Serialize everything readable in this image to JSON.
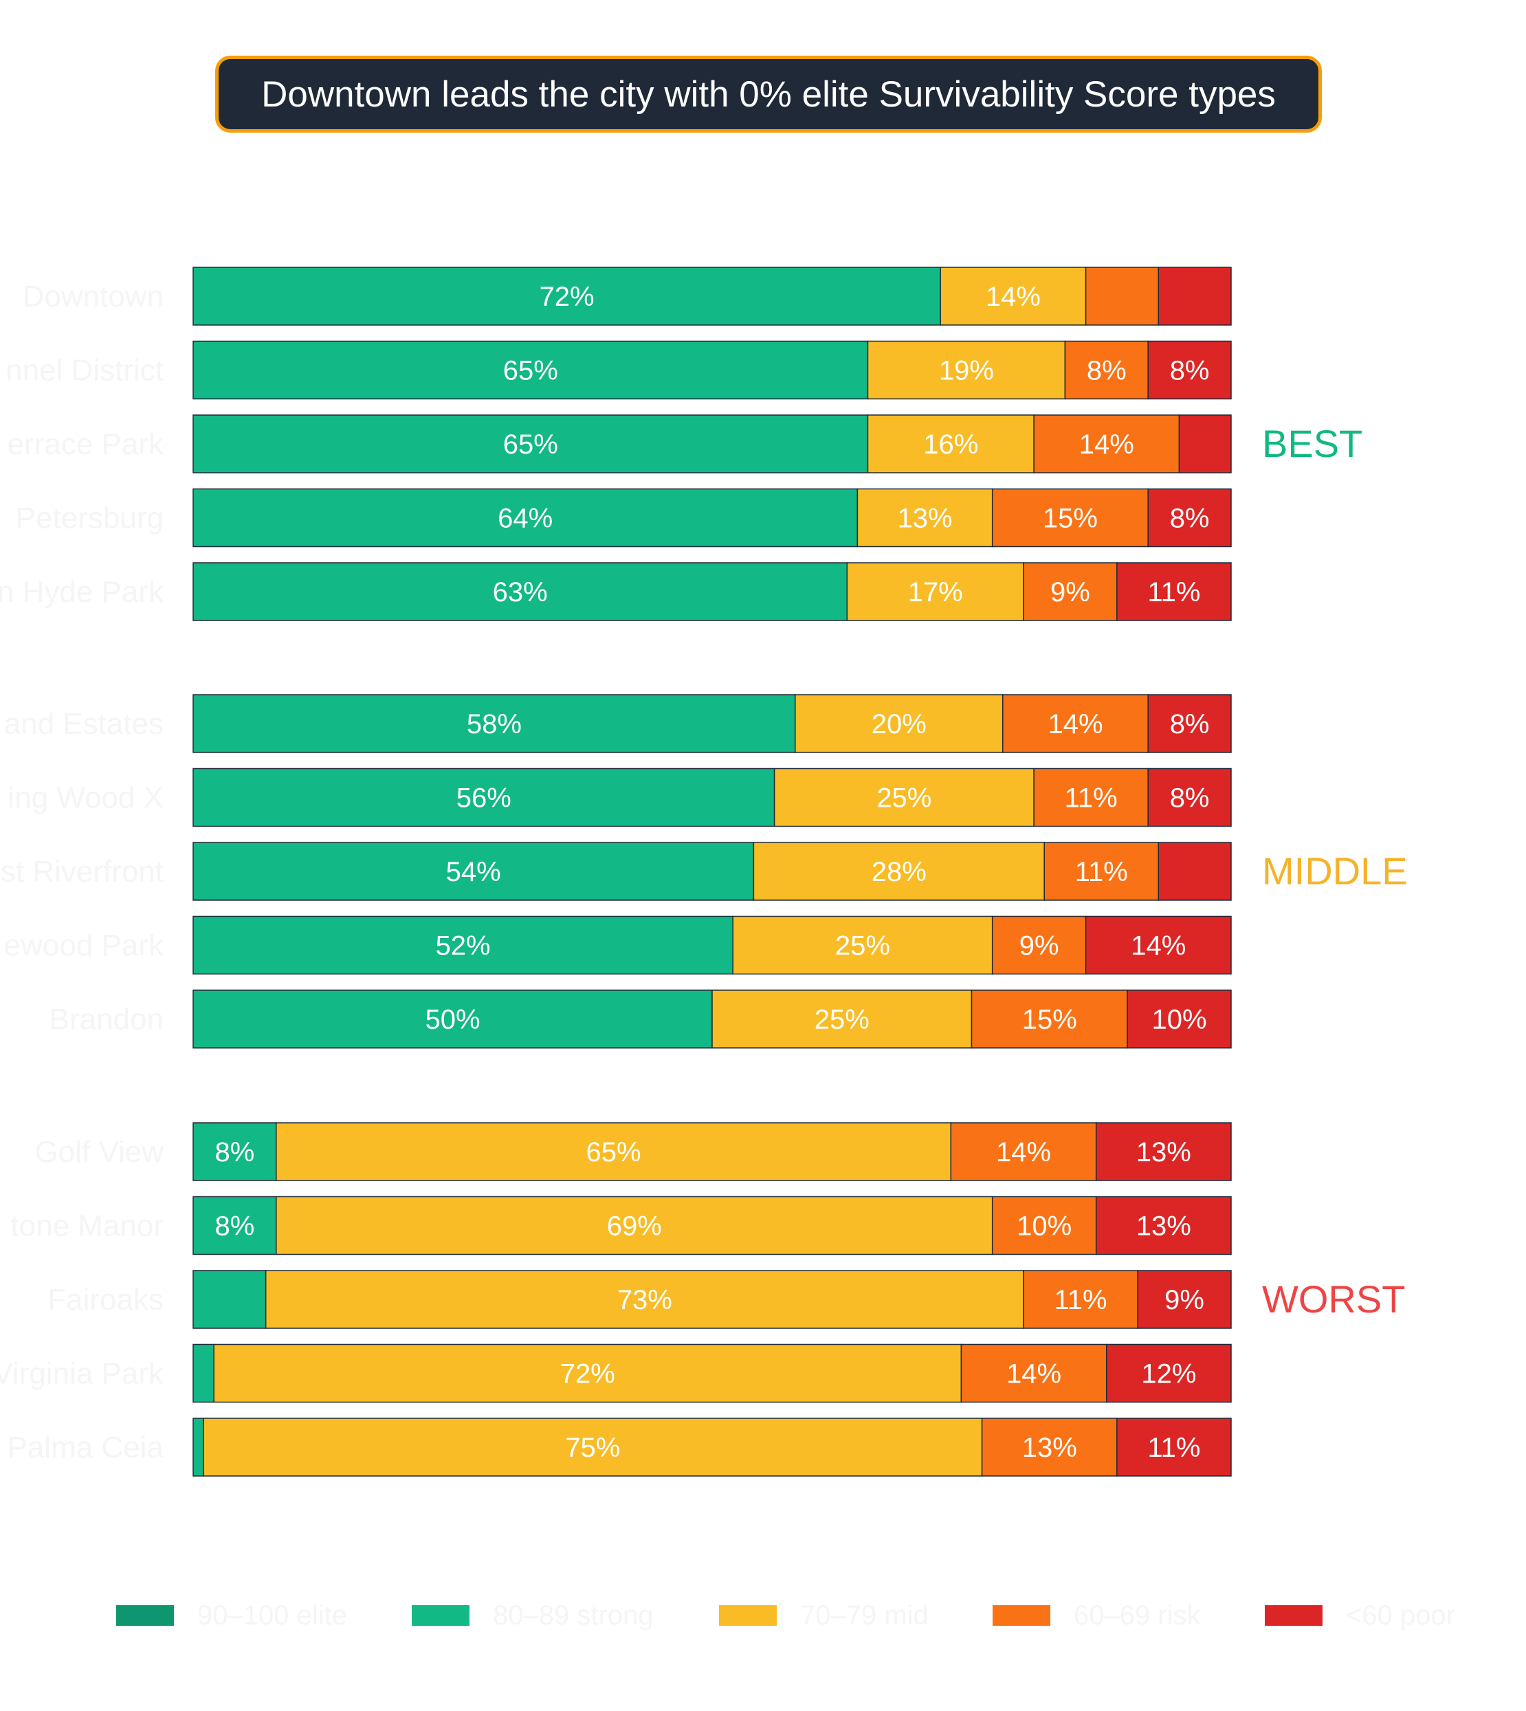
{
  "chart_data": {
    "type": "bar",
    "orientation": "horizontal",
    "stacked": true,
    "normalized_percent": true,
    "title": "Downtown leads the city with 0% elite Survivability Score types",
    "xlim": [
      0,
      100
    ],
    "legend_position": "bottom",
    "grid": false,
    "categories": [
      "Downtown",
      "Channel District",
      "Terrace Park",
      "St. Petersburg",
      "Beach Hyde Park",
      "Highland Estates",
      "Spring Wood X",
      "West Riverfront",
      "Edgewood Park",
      "Brandon",
      "Golf View",
      "Limestone Manor",
      "Fairoaks",
      "Virginia Park",
      "Palma Ceia"
    ],
    "category_labels_visible": [
      "Downtown",
      "nnel District",
      "errace Park",
      "Petersburg",
      "n Hyde Park",
      "and Estates",
      "ing Wood X",
      "st Riverfront",
      "ewood Park",
      "Brandon",
      "Golf View",
      "tone Manor",
      "Fairoaks",
      "Virginia Park",
      "Palma Ceia"
    ],
    "groups": [
      {
        "label": "BEST",
        "color": "#10b981",
        "start": 0,
        "count": 5
      },
      {
        "label": "MIDDLE",
        "color": "#f5b32a",
        "start": 5,
        "count": 5
      },
      {
        "label": "WORST",
        "color": "#ef4444",
        "start": 10,
        "count": 5
      }
    ],
    "series": [
      {
        "name": "90–100 elite",
        "color": "#0e9670",
        "values": [
          0,
          0,
          0,
          0,
          0,
          0,
          0,
          0,
          0,
          0,
          0,
          0,
          0,
          0,
          0
        ]
      },
      {
        "name": "80–89 strong",
        "color": "#12b886",
        "values": [
          72,
          65,
          65,
          64,
          63,
          58,
          56,
          54,
          52,
          50,
          8,
          8,
          7,
          2,
          1
        ]
      },
      {
        "name": "70–79 mid",
        "color": "#f9bc26",
        "values": [
          14,
          19,
          16,
          13,
          17,
          20,
          25,
          28,
          25,
          25,
          65,
          69,
          73,
          72,
          75
        ]
      },
      {
        "name": "60–69 risk",
        "color": "#f97316",
        "values": [
          7,
          8,
          14,
          15,
          9,
          14,
          11,
          11,
          9,
          15,
          14,
          10,
          11,
          14,
          13
        ]
      },
      {
        "name": "<60 poor",
        "color": "#dc2626",
        "values": [
          7,
          8,
          5,
          8,
          11,
          8,
          8,
          7,
          14,
          10,
          13,
          13,
          9,
          12,
          11
        ]
      }
    ],
    "data_labels": [
      [
        "",
        "72%",
        "14%",
        "",
        ""
      ],
      [
        "",
        "65%",
        "19%",
        "8%",
        "8%"
      ],
      [
        "",
        "65%",
        "16%",
        "14%",
        ""
      ],
      [
        "",
        "64%",
        "13%",
        "15%",
        "8%"
      ],
      [
        "",
        "63%",
        "17%",
        "9%",
        "11%"
      ],
      [
        "",
        "58%",
        "20%",
        "14%",
        "8%"
      ],
      [
        "",
        "56%",
        "25%",
        "11%",
        "8%"
      ],
      [
        "",
        "54%",
        "28%",
        "11%",
        ""
      ],
      [
        "",
        "52%",
        "25%",
        "9%",
        "14%"
      ],
      [
        "",
        "50%",
        "25%",
        "15%",
        "10%"
      ],
      [
        "",
        "8%",
        "65%",
        "14%",
        "13%"
      ],
      [
        "",
        "8%",
        "69%",
        "10%",
        "13%"
      ],
      [
        "",
        "",
        "73%",
        "11%",
        "9%"
      ],
      [
        "",
        "",
        "72%",
        "14%",
        "12%"
      ],
      [
        "",
        "",
        "75%",
        "13%",
        "11%"
      ]
    ]
  }
}
